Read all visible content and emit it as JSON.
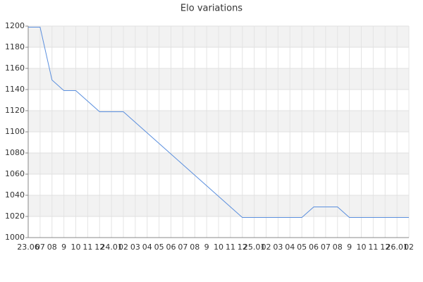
{
  "chart_data": {
    "type": "line",
    "title": "Elo variations",
    "categories": [
      "23.06",
      "07",
      "08",
      "9",
      "10",
      "11",
      "12",
      "24.01",
      "02",
      "03",
      "04",
      "05",
      "06",
      "07",
      "08",
      "9",
      "10",
      "11",
      "12",
      "25.01",
      "02",
      "03",
      "04",
      "05",
      "06",
      "07",
      "08",
      "9",
      "10",
      "11",
      "12",
      "26.01",
      "02"
    ],
    "values": [
      1199,
      1199,
      1149,
      1139,
      1139,
      1129,
      1119,
      1119,
      1119,
      1109,
      1099,
      1089,
      1079,
      1069,
      1059,
      1049,
      1039,
      1029,
      1019,
      1019,
      1019,
      1019,
      1019,
      1019,
      1029,
      1029,
      1029,
      1019,
      1019,
      1019,
      1019,
      1019,
      1019
    ],
    "color": "#5b8fde",
    "ylim": [
      1000,
      1200
    ],
    "yticks": [
      1000,
      1020,
      1040,
      1060,
      1080,
      1100,
      1120,
      1140,
      1160,
      1180,
      1200
    ],
    "grid": true
  }
}
